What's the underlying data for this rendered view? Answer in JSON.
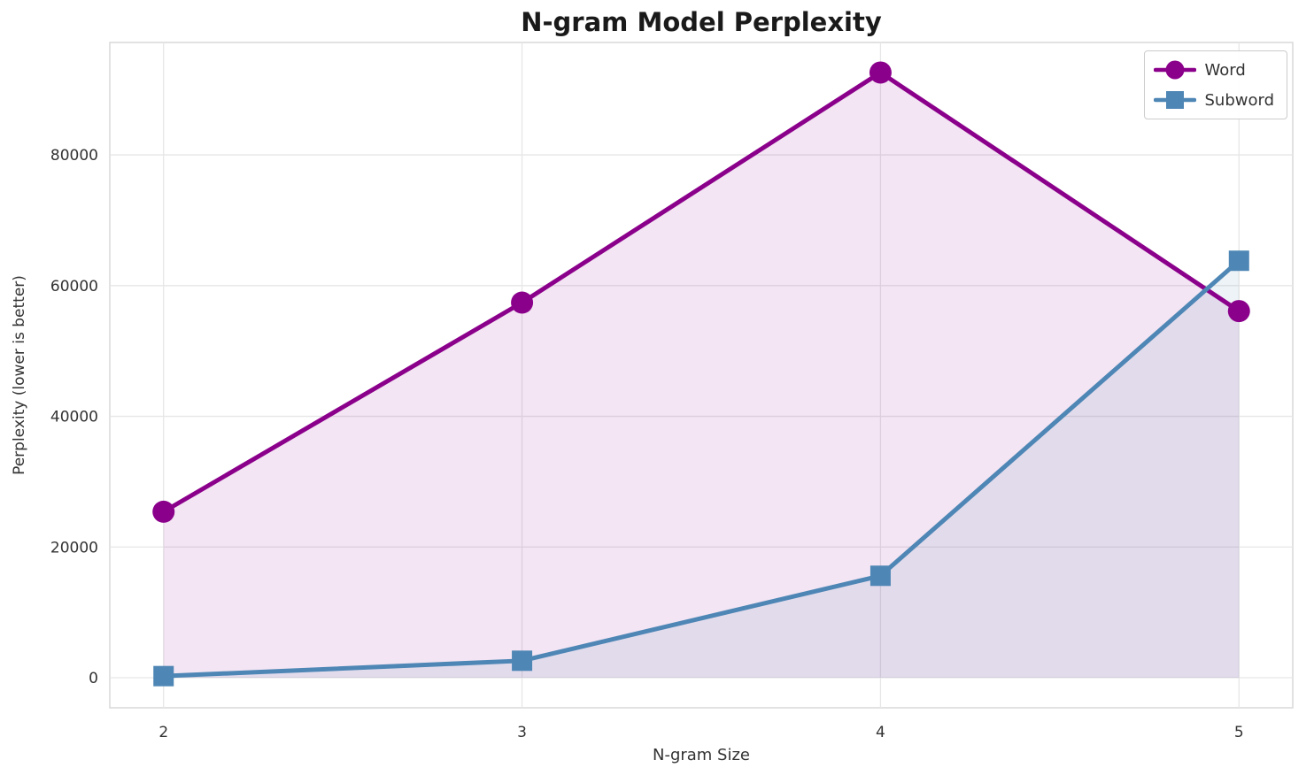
{
  "chart_data": {
    "type": "line",
    "title": "N-gram Model Perplexity",
    "xlabel": "N-gram Size",
    "ylabel": "Perplexity (lower is better)",
    "x": [
      2,
      3,
      4,
      5
    ],
    "xlim": [
      1.85,
      5.15
    ],
    "ylim": [
      -4600,
      97200
    ],
    "yticks": [
      0,
      20000,
      40000,
      60000,
      80000
    ],
    "grid": true,
    "legend_position": "upper right",
    "fill_alpha": 0.1,
    "line_width": 5,
    "series": [
      {
        "name": "Word",
        "color": "#8B008B",
        "marker": "circle",
        "values": [
          25400,
          57400,
          92600,
          56100
        ]
      },
      {
        "name": "Subword",
        "color": "#4E86B5",
        "marker": "square",
        "values": [
          250,
          2600,
          15600,
          63800
        ]
      }
    ],
    "colors": {
      "grid": "#e6e6e6",
      "border": "#d9d9d9",
      "tick_text": "#333333",
      "title_text": "#1a1a1a",
      "background": "#ffffff"
    }
  }
}
